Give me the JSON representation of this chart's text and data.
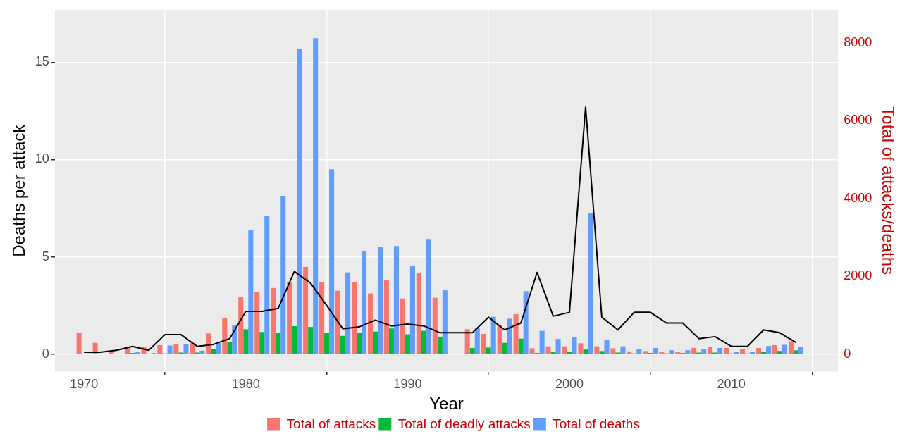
{
  "chart_data": {
    "type": "bar",
    "xlabel": "Year",
    "ylabel": "Deaths per attack",
    "y2label": "Total of attacks/deaths",
    "x": [
      1970,
      1971,
      1972,
      1973,
      1974,
      1975,
      1976,
      1977,
      1978,
      1979,
      1980,
      1981,
      1982,
      1983,
      1984,
      1985,
      1986,
      1987,
      1988,
      1989,
      1990,
      1991,
      1992,
      1993,
      1994,
      1995,
      1996,
      1997,
      1998,
      1999,
      2000,
      2001,
      2002,
      2003,
      2004,
      2005,
      2006,
      2007,
      2008,
      2009,
      2010,
      2011,
      2012,
      2013,
      2014
    ],
    "series": [
      {
        "name": "Total of attacks",
        "color": "#f8766d",
        "axis": "y2",
        "values": [
          550,
          290,
          80,
          160,
          190,
          230,
          260,
          290,
          530,
          920,
          1460,
          1600,
          1700,
          1840,
          2240,
          1850,
          1630,
          1850,
          1560,
          1910,
          1430,
          2090,
          1450,
          null,
          640,
          520,
          750,
          1030,
          150,
          200,
          200,
          280,
          200,
          150,
          70,
          80,
          60,
          60,
          160,
          180,
          160,
          120,
          160,
          230,
          330
        ]
      },
      {
        "name": "Total of deadly attacks",
        "color": "#00ba38",
        "axis": "y2",
        "values": [
          null,
          10,
          null,
          30,
          null,
          20,
          40,
          40,
          130,
          320,
          640,
          570,
          540,
          720,
          700,
          550,
          470,
          550,
          580,
          660,
          510,
          600,
          450,
          null,
          160,
          170,
          290,
          400,
          30,
          50,
          60,
          120,
          80,
          40,
          20,
          30,
          20,
          30,
          40,
          40,
          20,
          20,
          60,
          80,
          100
        ]
      },
      {
        "name": "Total of deaths",
        "color": "#619cff",
        "axis": "y2",
        "values": [
          20,
          null,
          null,
          60,
          30,
          220,
          260,
          90,
          290,
          740,
          3190,
          3550,
          4070,
          7840,
          8120,
          4750,
          2100,
          2650,
          2760,
          2780,
          2270,
          2960,
          1640,
          null,
          670,
          960,
          910,
          1620,
          600,
          390,
          440,
          3620,
          370,
          200,
          130,
          160,
          100,
          100,
          130,
          160,
          60,
          50,
          210,
          240,
          180
        ]
      },
      {
        "type": "line",
        "color": "#000000",
        "axis": "y",
        "values": [
          0.1,
          0.1,
          0.2,
          0.4,
          0.2,
          1.0,
          1.0,
          0.4,
          0.5,
          0.8,
          2.2,
          2.2,
          2.35,
          4.25,
          3.65,
          2.5,
          1.3,
          1.4,
          1.75,
          1.45,
          1.55,
          1.45,
          1.1,
          1.1,
          1.1,
          1.9,
          1.25,
          1.6,
          4.2,
          1.95,
          2.15,
          12.7,
          1.9,
          1.25,
          2.15,
          2.15,
          1.6,
          1.6,
          0.8,
          0.9,
          0.4,
          0.4,
          1.25,
          1.1,
          0.6
        ]
      }
    ],
    "xlim": [
      1968.2,
      2016.6
    ],
    "xticks": [
      1970,
      1980,
      1990,
      2000,
      2010
    ],
    "ylim": [
      -0.9,
      17.7
    ],
    "yticks": [
      0,
      5,
      10,
      15
    ],
    "y2lim": [
      -450,
      8850
    ],
    "y2ticks": [
      0,
      2000,
      4000,
      6000,
      8000
    ],
    "grid": true,
    "legend": "bottom",
    "marker": "none",
    "line_style": "solid"
  }
}
